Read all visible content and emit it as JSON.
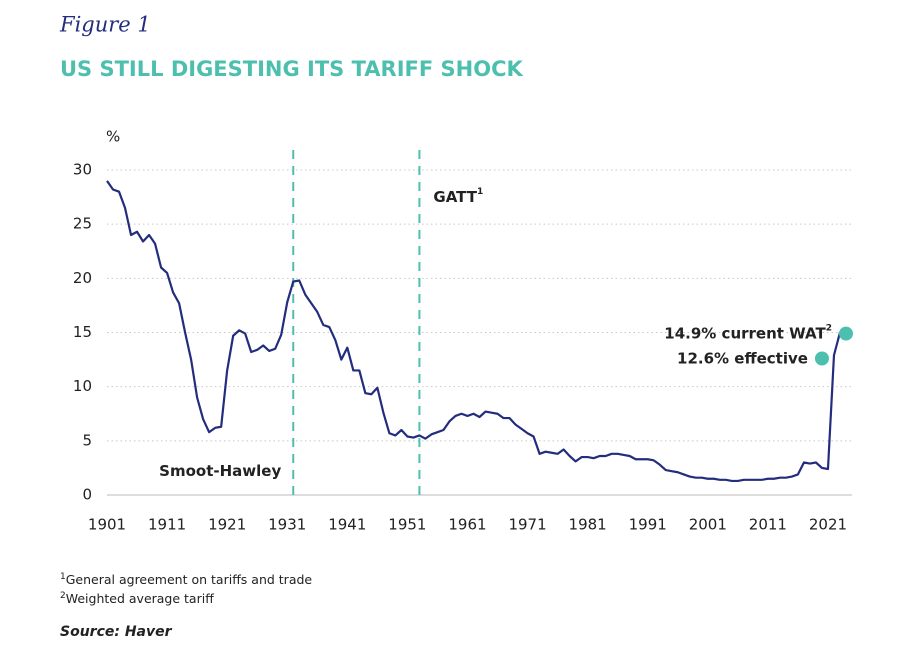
{
  "figure_label": "Figure 1",
  "chart_data": {
    "type": "line",
    "title": "US STILL DIGESTING ITS TARIFF SHOCK",
    "y_unit": "%",
    "x": [
      1901,
      1902,
      1903,
      1904,
      1905,
      1906,
      1907,
      1908,
      1909,
      1910,
      1911,
      1912,
      1913,
      1914,
      1915,
      1916,
      1917,
      1918,
      1919,
      1920,
      1921,
      1922,
      1923,
      1924,
      1925,
      1926,
      1927,
      1928,
      1929,
      1930,
      1931,
      1932,
      1933,
      1934,
      1935,
      1936,
      1937,
      1938,
      1939,
      1940,
      1941,
      1942,
      1943,
      1944,
      1945,
      1946,
      1947,
      1948,
      1949,
      1950,
      1951,
      1952,
      1953,
      1954,
      1955,
      1956,
      1957,
      1958,
      1959,
      1960,
      1961,
      1962,
      1963,
      1964,
      1965,
      1966,
      1967,
      1968,
      1969,
      1970,
      1971,
      1972,
      1973,
      1974,
      1975,
      1976,
      1977,
      1978,
      1979,
      1980,
      1981,
      1982,
      1983,
      1984,
      1985,
      1986,
      1987,
      1988,
      1989,
      1990,
      1991,
      1992,
      1993,
      1994,
      1995,
      1996,
      1997,
      1998,
      1999,
      2000,
      2001,
      2002,
      2003,
      2004,
      2005,
      2006,
      2007,
      2008,
      2009,
      2010,
      2011,
      2012,
      2013,
      2014,
      2015,
      2016,
      2017,
      2018,
      2019,
      2020,
      2021,
      2022,
      2023
    ],
    "series": [
      {
        "color": "#232d7d",
        "values": [
          29,
          28.2,
          28,
          26.5,
          24,
          24.3,
          23.4,
          24,
          23.2,
          21,
          20.5,
          18.7,
          17.7,
          15,
          12.5,
          9,
          7,
          5.8,
          6.2,
          6.3,
          11.5,
          14.7,
          15.2,
          14.9,
          13.2,
          13.4,
          13.8,
          13.3,
          13.5,
          14.8,
          17.8,
          19.7,
          19.8,
          18.5,
          17.7,
          16.9,
          15.7,
          15.5,
          14.3,
          12.5,
          13.6,
          11.5,
          11.5,
          9.4,
          9.3,
          9.9,
          7.6,
          5.7,
          5.5,
          6,
          5.4,
          5.3,
          5.5,
          5.2,
          5.6,
          5.8,
          6,
          6.8,
          7.3,
          7.5,
          7.3,
          7.5,
          7.2,
          7.7,
          7.6,
          7.5,
          7.1,
          7.1,
          6.5,
          6.1,
          5.7,
          5.4,
          3.8,
          4,
          3.9,
          3.8,
          4.2,
          3.6,
          3.1,
          3.5,
          3.5,
          3.4,
          3.6,
          3.6,
          3.8,
          3.8,
          3.7,
          3.6,
          3.3,
          3.3,
          3.3,
          3.2,
          2.8,
          2.3,
          2.2,
          2.1,
          1.9,
          1.7,
          1.6,
          1.6,
          1.5,
          1.5,
          1.4,
          1.4,
          1.3,
          1.3,
          1.4,
          1.4,
          1.4,
          1.4,
          1.5,
          1.5,
          1.6,
          1.6,
          1.7,
          1.9,
          3,
          2.9,
          3,
          2.5,
          2.4,
          12.9,
          15
        ]
      }
    ],
    "points": [
      {
        "label": "14.9% current WAT",
        "sup": "2",
        "x": 2024,
        "value": 14.9,
        "color": "#4dbfae"
      },
      {
        "label": "12.6% effective",
        "x": 2020,
        "value": 12.6,
        "color": "#4dbfae"
      }
    ],
    "events": [
      {
        "x": 1932,
        "label": "Smoot-Hawley",
        "color": "#4dbfae"
      },
      {
        "x": 1953,
        "label": "GATT",
        "sup": "1",
        "color": "#4dbfae"
      }
    ],
    "xlim": [
      1901,
      2025
    ],
    "ylim": [
      0,
      30
    ],
    "xticks": [
      1901,
      1911,
      1921,
      1931,
      1941,
      1951,
      1961,
      1971,
      1981,
      1991,
      2001,
      2011,
      2021
    ],
    "yticks": [
      0,
      5,
      10,
      15,
      20,
      25,
      30
    ],
    "grid": true,
    "footnotes": [
      {
        "mark": "1",
        "text": "General agreement on tariffs and trade"
      },
      {
        "mark": "2",
        "text": "Weighted average tariff"
      }
    ],
    "source": "Source: Haver"
  }
}
